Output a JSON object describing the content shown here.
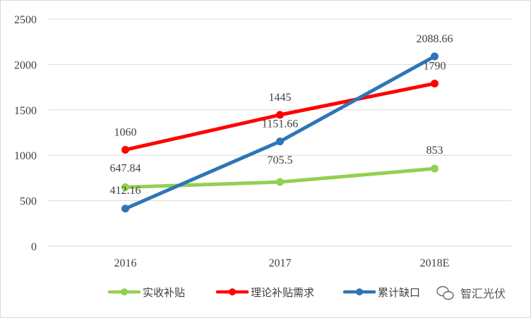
{
  "chart_data": {
    "type": "line",
    "categories": [
      "2016",
      "2017",
      "2018E"
    ],
    "ylim": [
      0,
      2500
    ],
    "yticks": [
      0,
      500,
      1000,
      1500,
      2000,
      2500
    ],
    "grid": "horizontal",
    "legend_position": "bottom",
    "series": [
      {
        "name": "实收补贴",
        "color": "#92d050",
        "values": [
          647.84,
          705.5,
          853
        ],
        "labels": [
          "647.84",
          "705.5",
          "853"
        ]
      },
      {
        "name": "理论补贴需求",
        "color": "#ff0000",
        "values": [
          1060,
          1445,
          1790
        ],
        "labels": [
          "1060",
          "1445",
          "1790"
        ]
      },
      {
        "name": "累计缺口",
        "color": "#2e75b6",
        "values": [
          412.16,
          1151.66,
          2088.66
        ],
        "labels": [
          "412.16",
          "1151.66",
          "2088.66"
        ]
      }
    ]
  },
  "watermark": {
    "text": "智汇光伏",
    "icon": "wechat-icon"
  }
}
